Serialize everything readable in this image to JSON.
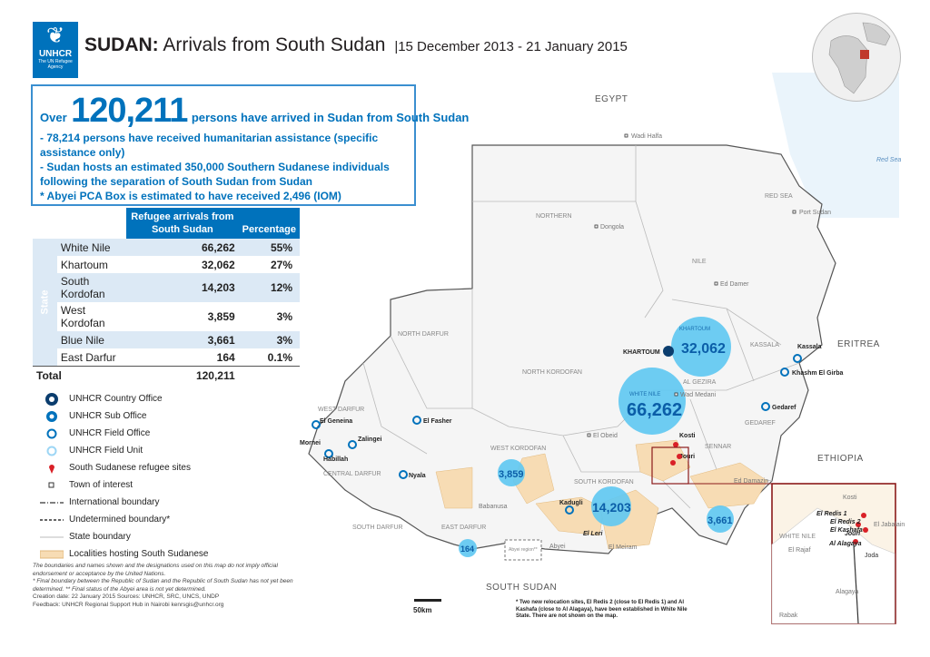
{
  "header": {
    "logo_text": "UNHCR",
    "logo_tagline": "The UN Refugee Agency",
    "title_country": "SUDAN:",
    "title_rest": "Arrivals from South Sudan",
    "title_date": "|15 December 2013 - 21 January 2015"
  },
  "summary": {
    "over": "Over",
    "total": "120,211",
    "headline_rest": "persons have arrived in Sudan from South Sudan",
    "bullets": [
      "- 78,214 persons have received humanitarian assistance (specific",
      "assistance only)",
      "- Sudan hosts an estimated 350,000 Southern Sudanese individuals",
      "following the separation of South Sudan from Sudan",
      "* Abyei PCA Box is estimated to have received 2,496 (IOM)"
    ]
  },
  "table": {
    "col1": "Refugee arrivals from South Sudan",
    "col2": "Percentage",
    "side_label": "State",
    "rows": [
      {
        "state": "White Nile",
        "value": "66,262",
        "pct": "55%"
      },
      {
        "state": "Khartoum",
        "value": "32,062",
        "pct": "27%"
      },
      {
        "state": "South Kordofan",
        "value": "14,203",
        "pct": "12%"
      },
      {
        "state": "West Kordofan",
        "value": "3,859",
        "pct": "3%"
      },
      {
        "state": "Blue Nile",
        "value": "3,661",
        "pct": "3%"
      },
      {
        "state": "East Darfur",
        "value": "164",
        "pct": "0.1%"
      }
    ],
    "total_label": "Total",
    "total_value": "120,211"
  },
  "legend": [
    {
      "label": "UNHCR Country Office",
      "icon": "unhcr-country-office-icon"
    },
    {
      "label": "UNHCR Sub Office",
      "icon": "unhcr-sub-office-icon"
    },
    {
      "label": "UNHCR Field Office",
      "icon": "field-office-icon"
    },
    {
      "label": "UNHCR Field Unit",
      "icon": "field-unit-icon"
    },
    {
      "label": "South Sudanese refugee sites",
      "icon": "refugee-site-pin-icon"
    },
    {
      "label": "Town of interest",
      "icon": "town-square-icon"
    },
    {
      "label": "International boundary",
      "icon": "intl-boundary-line-icon"
    },
    {
      "label": "Undetermined boundary*",
      "icon": "undetermined-boundary-icon"
    },
    {
      "label": "State boundary",
      "icon": "state-boundary-icon"
    },
    {
      "label": "Localities hosting South Sudanese",
      "icon": "locality-fill-icon"
    }
  ],
  "disclaimer": {
    "lines": [
      "The boundaries and names shown and the designations used on this map do not imply official",
      "endorsement or acceptance by the United Nations.",
      "* Final boundary between the Republic of Sudan and the Republic of South Sudan has not yet been",
      "determined. ** Final status of the Abyei area is not yet determined.",
      "Creation date: 22 January 2015 Sources: UNHCR, SRC, UNCS, UNDP",
      "Feedback: UNHCR Regional Support Hub in Nairobi kenrsgis@unhcr.org"
    ]
  },
  "map": {
    "countries": {
      "egypt": "EGYPT",
      "eritrea": "ERITREA",
      "ethiopia": "ETHIOPIA",
      "south_sudan": "SOUTH SUDAN",
      "red_sea_water": "Red Sea"
    },
    "states": {
      "northern": "NORTHERN",
      "red_sea": "RED SEA",
      "nile": "NILE",
      "kassala": "KASSALA",
      "north_darfur": "NORTH DARFUR",
      "north_kordofan": "NORTH KORDOFAN",
      "west_darfur": "WEST DARFUR",
      "central_darfur": "CENTRAL DARFUR",
      "south_darfur": "SOUTH DARFUR",
      "east_darfur": "EAST DARFUR",
      "west_kordofan": "WEST KORDOFAN",
      "south_kordofan": "SOUTH KORDOFAN",
      "gedaref": "GEDAREF",
      "sennar": "SENNAR",
      "al_gezira": "AL GEZIRA",
      "blue_nile": "BLUE NILE",
      "khartoum_st": "KHARTOUM",
      "white_nile_st": "WHITE NILE"
    },
    "towns": {
      "wadi_halfa": "Wadi Halfa",
      "dongola": "Dongola",
      "port_sudan": "Port Sudan",
      "ed_damer": "Ed Damer",
      "kassala": "Kassala",
      "khashm": "Khashm El Girba",
      "gedaref": "Gedaref",
      "khartoum": "KHARTOUM",
      "wad_medani": "Wad Medani",
      "kosti": "Kosti",
      "el_obeid": "El Obeid",
      "el_fasher": "El Fasher",
      "el_geneina": "El Geneina",
      "mornei": "Mornei",
      "zalingei": "Zalingei",
      "habillah": "Habillah",
      "nyala": "Nyala",
      "kadugli": "Kadugli",
      "el_leri": "El Leri",
      "ed_damazin": "Ed Damazin",
      "abyei": "Abyei",
      "jouri": "Jouri",
      "babanusa": "Babanusa",
      "el_meiram": "El Meiram"
    },
    "abyei_box": "Abyei region**",
    "bubbles": [
      {
        "value": "32,062",
        "label": "KHARTOUM"
      },
      {
        "value": "66,262",
        "label": "WHITE NILE"
      },
      {
        "value": "14,203",
        "label": ""
      },
      {
        "value": "3,859",
        "label": ""
      },
      {
        "value": "3,661",
        "label": ""
      },
      {
        "value": "164",
        "label": ""
      }
    ],
    "inset": {
      "sites": [
        "El Redis 1",
        "El Redis 2",
        "El Kashafa",
        "Jouri",
        "Al Alagaya"
      ],
      "state": "WHITE NILE",
      "towns": [
        "Joda",
        "El Jabalain",
        "Kosti",
        "El Rajaf",
        "Rabak",
        "Alagaya"
      ]
    },
    "scale_label": "50km",
    "note": "* Two new relocation sites, El Redis 2 (close to El Redis 1) and Al Kashafa (close to Al Alagaya), have been established in White Nile State. There are not shown on the map."
  },
  "colors": {
    "accent": "#0072bc",
    "bubble": "#5ec8f2",
    "locality": "#f7dcb4",
    "pin": "#d92027"
  }
}
